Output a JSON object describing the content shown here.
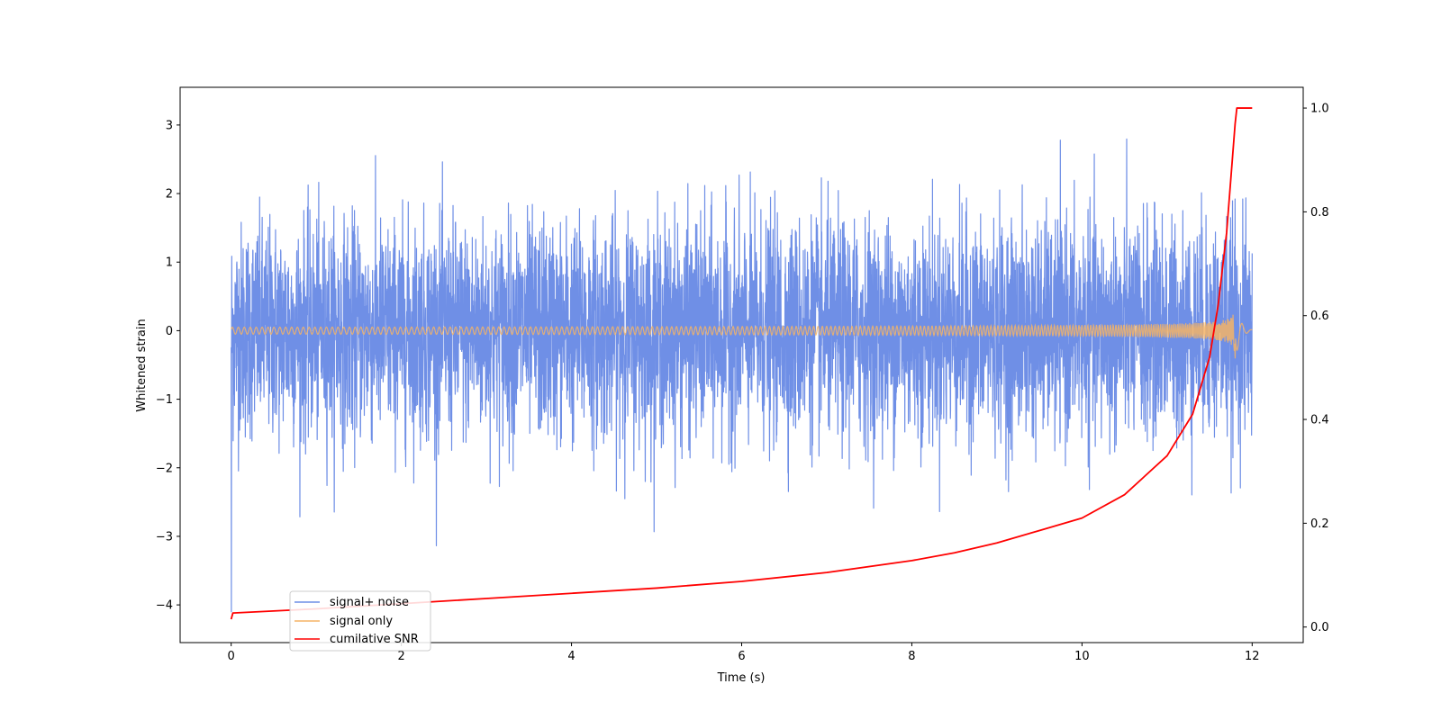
{
  "chart_data": {
    "type": "line",
    "xlabel": "Time (s)",
    "ylabel": "Whitened strain",
    "xlim": [
      -0.6,
      12.6
    ],
    "ylim": [
      -4.55,
      3.55
    ],
    "y2lim": [
      -0.03,
      1.04
    ],
    "x_ticks": [
      0,
      2,
      4,
      6,
      8,
      10,
      12
    ],
    "y_ticks": [
      -4,
      -3,
      -2,
      -1,
      0,
      1,
      2,
      3
    ],
    "y2_ticks": [
      0.0,
      0.2,
      0.4,
      0.6,
      0.8,
      1.0
    ],
    "x_tick_labels": [
      "0",
      "2",
      "4",
      "6",
      "8",
      "10",
      "12"
    ],
    "y_tick_labels": [
      "−4",
      "−3",
      "−2",
      "−1",
      "0",
      "1",
      "2",
      "3"
    ],
    "y2_tick_labels": [
      "0.0",
      "0.2",
      "0.4",
      "0.6",
      "0.8",
      "1.0"
    ],
    "grid": false,
    "legend_position": "bottom-left",
    "series": [
      {
        "name": "signal+ noise",
        "color": "#6f8fe6",
        "axis": "left",
        "kind": "noise",
        "x_range": [
          0,
          12
        ],
        "typical_amplitude": [
          -1.6,
          1.6
        ],
        "peak_range": [
          -3.55,
          3.2
        ],
        "initial_value": -4.1
      },
      {
        "name": "signal only",
        "color": "#f5b466",
        "axis": "left",
        "kind": "chirp",
        "x_range": [
          0,
          12
        ],
        "merger_time": 11.8,
        "peak_amplitude": 0.45
      },
      {
        "name": "cumilative SNR",
        "color": "#ff0000",
        "axis": "right",
        "x": [
          0,
          0.02,
          1,
          2,
          3,
          4,
          5,
          6,
          7,
          8,
          8.5,
          9,
          9.5,
          10,
          10.5,
          11,
          11.3,
          11.5,
          11.6,
          11.7,
          11.8,
          11.82,
          12
        ],
        "y": [
          0.015,
          0.027,
          0.035,
          0.045,
          0.055,
          0.065,
          0.075,
          0.088,
          0.105,
          0.128,
          0.143,
          0.162,
          0.186,
          0.21,
          0.255,
          0.33,
          0.41,
          0.52,
          0.62,
          0.76,
          0.97,
          1.0,
          1.0
        ]
      }
    ]
  }
}
